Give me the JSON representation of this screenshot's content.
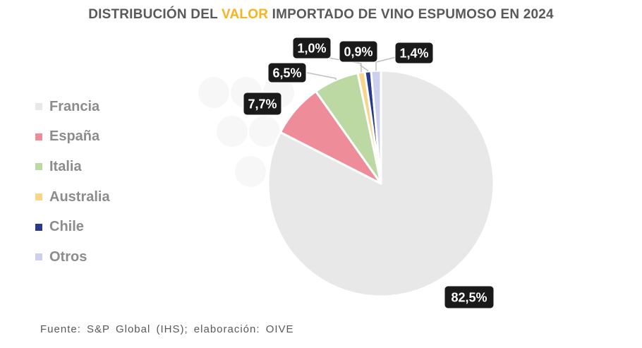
{
  "title": {
    "part1": "DISTRIBUCIÓN DEL ",
    "highlight": "VALOR",
    "part2": " IMPORTADO DE VINO ESPUMOSO EN 2024",
    "highlight_color": "#F4B521"
  },
  "source": "Fuente: S&P Global (IHS); elaboración: OIVE",
  "chart_data": {
    "type": "pie",
    "categories": [
      "Francia",
      "España",
      "Italia",
      "Australia",
      "Chile",
      "Otros"
    ],
    "values": [
      82.5,
      7.7,
      6.5,
      1.0,
      0.9,
      1.4
    ],
    "labels": [
      "82,5%",
      "7,7%",
      "6,5%",
      "1,0%",
      "0,9%",
      "1,4%"
    ],
    "colors": [
      "#E8E8E8",
      "#EE8C9A",
      "#BDD9A3",
      "#F9D58C",
      "#283A8C",
      "#CCD0EE"
    ],
    "legend_position": "left",
    "unit": "%"
  }
}
